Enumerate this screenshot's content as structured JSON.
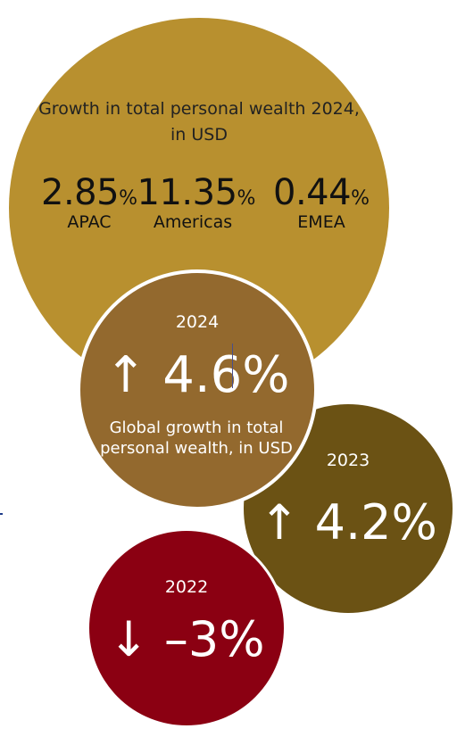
{
  "main_circle": {
    "title": "Growth in total personal wealth 2024, in USD",
    "stats": [
      {
        "value": "2.85",
        "unit": "%",
        "region": "APAC"
      },
      {
        "value": "11.35",
        "unit": "%",
        "region": "Americas"
      },
      {
        "value": "0.44",
        "unit": "%",
        "region": "EMEA"
      }
    ]
  },
  "circle_2024": {
    "year": "2024",
    "value": "↑ 4.6%",
    "description": "Global growth in total personal wealth, in USD"
  },
  "circle_2023": {
    "year": "2023",
    "value": "↑ 4.2%"
  },
  "circle_2022": {
    "year": "2022",
    "value": "↓ –3%"
  },
  "colors": {
    "main": "#b8902f",
    "y2024": "#93692e",
    "y2023": "#6b5214",
    "y2022": "#8b0012"
  }
}
